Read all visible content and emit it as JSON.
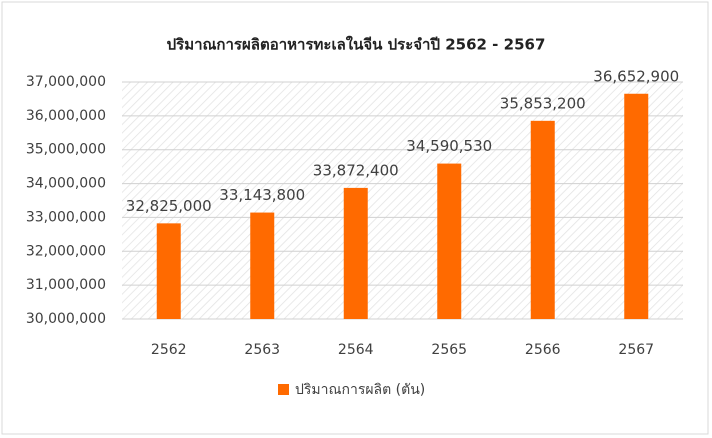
{
  "chart_data": {
    "type": "bar",
    "title": "ปริมาณการผลิตอาหารทะเลในจีน ประจำปี 2562 - 2567",
    "categories": [
      "2562",
      "2563",
      "2564",
      "2565",
      "2566",
      "2567"
    ],
    "series": [
      {
        "name": "ปริมาณการผลิต (ตัน)",
        "color": "#ff6a00",
        "values": [
          32825000,
          33143800,
          33872400,
          34590530,
          35853200,
          36652900
        ],
        "value_labels": [
          "32,825,000",
          "33,143,800",
          "33,872,400",
          "34,590,530",
          "35,853,200",
          "36,652,900"
        ]
      }
    ],
    "ylim": [
      30000000,
      37000000
    ],
    "yticks": [
      {
        "value": 30000000,
        "label": "30,000,000"
      },
      {
        "value": 31000000,
        "label": "31,000,000"
      },
      {
        "value": 32000000,
        "label": "32,000,000"
      },
      {
        "value": 33000000,
        "label": "33,000,000"
      },
      {
        "value": 34000000,
        "label": "34,000,000"
      },
      {
        "value": 35000000,
        "label": "35,000,000"
      },
      {
        "value": 36000000,
        "label": "36,000,000"
      },
      {
        "value": 37000000,
        "label": "37,000,000"
      }
    ],
    "grid": true,
    "legend": "bottom"
  }
}
